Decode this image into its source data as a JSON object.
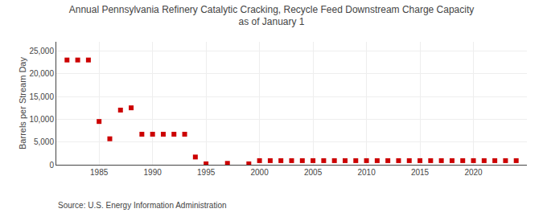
{
  "chart_data": {
    "type": "scatter",
    "title": "Annual Pennsylvania Refinery Catalytic Cracking, Recycle Feed Downstream Charge Capacity\nas of January 1",
    "ylabel": "Barrels per Stream Day",
    "annotations": [
      "Source: U.S. Energy Information Administration"
    ],
    "x": [
      1982,
      1983,
      1984,
      1985,
      1986,
      1987,
      1988,
      1989,
      1990,
      1991,
      1992,
      1993,
      1994,
      1995,
      1997,
      1999,
      2000,
      2001,
      2002,
      2003,
      2004,
      2005,
      2006,
      2007,
      2008,
      2009,
      2010,
      2011,
      2012,
      2013,
      2014,
      2015,
      2016,
      2017,
      2018,
      2019,
      2020,
      2021,
      2022,
      2023,
      2024
    ],
    "values": [
      23000,
      23000,
      23000,
      9500,
      5700,
      12000,
      12500,
      6700,
      6700,
      6700,
      6700,
      6700,
      1700,
      200,
      300,
      200,
      900,
      900,
      900,
      900,
      900,
      900,
      900,
      900,
      900,
      900,
      900,
      900,
      900,
      900,
      900,
      900,
      900,
      900,
      900,
      900,
      900,
      900,
      900,
      900,
      900
    ],
    "color": "#cc0000",
    "marker": "square",
    "xlim": [
      1981,
      2025
    ],
    "xticks": [
      1985,
      1990,
      1995,
      2000,
      2005,
      2010,
      2015,
      2020
    ],
    "ylim": [
      0,
      27000
    ],
    "yticks": [
      0,
      {
        "value": 5000,
        "label": "5,000"
      },
      {
        "value": 10000,
        "label": "10,000"
      },
      {
        "value": 15000,
        "label": "15,000"
      },
      {
        "value": 20000,
        "label": "20,000"
      },
      {
        "value": 25000,
        "label": "25,000"
      }
    ],
    "grid": true
  }
}
